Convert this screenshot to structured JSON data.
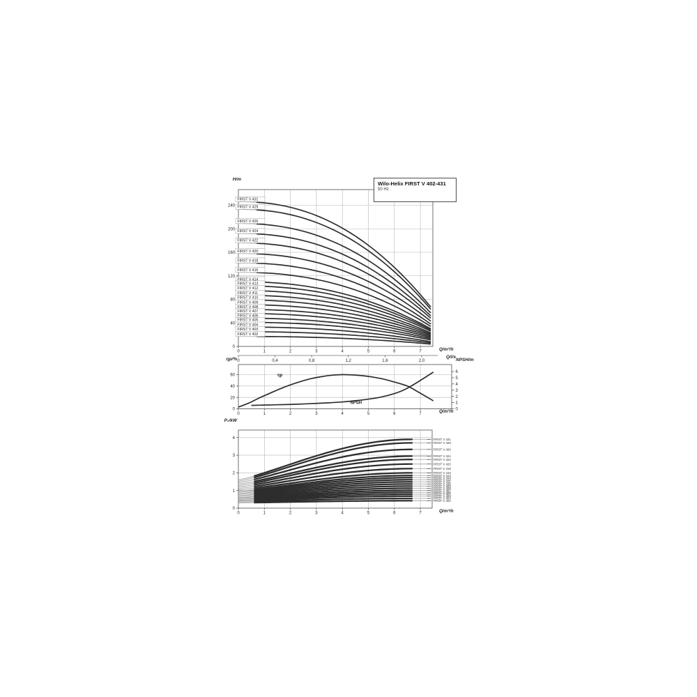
{
  "title_box": {
    "title": "Wilo-Helix FIRST V 402-431",
    "subtitle": "50 Hz"
  },
  "chart_data": [
    {
      "id": "head_curves",
      "type": "line",
      "title": "Wilo-Helix FIRST V 402-431",
      "subtitle": "50 Hz",
      "ylabel": "H/m",
      "xlabel": "Q/m³/h",
      "xlabel2": "Q/l/s",
      "xlim": [
        0,
        7.5
      ],
      "ylim": [
        0,
        267
      ],
      "xticks": [
        0,
        1,
        2,
        3,
        4,
        5,
        6,
        7
      ],
      "yticks": [
        0,
        40,
        80,
        120,
        160,
        200,
        240
      ],
      "x2_ticks": [
        {
          "v": 0.0,
          "label": "0"
        },
        {
          "v": 0.4,
          "label": "0,4"
        },
        {
          "v": 0.8,
          "label": "0,8"
        },
        {
          "v": 1.2,
          "label": "1,2"
        },
        {
          "v": 1.6,
          "label": "1,6"
        },
        {
          "v": 2.0,
          "label": "2,0"
        }
      ],
      "grid": true,
      "q_min_thick": 0.7,
      "q_end": 7.4,
      "curve_exponent": 2.25,
      "series": [
        {
          "name": "FIRST V 431",
          "h0": 246,
          "h_end": 67
        },
        {
          "name": "FIRST V 429",
          "h0": 233,
          "h_end": 63
        },
        {
          "name": "FIRST V 426",
          "h0": 209,
          "h_end": 57
        },
        {
          "name": "FIRST V 424",
          "h0": 192,
          "h_end": 52
        },
        {
          "name": "FIRST V 422",
          "h0": 176,
          "h_end": 48
        },
        {
          "name": "FIRST V 420",
          "h0": 158,
          "h_end": 43
        },
        {
          "name": "FIRST V 418",
          "h0": 142,
          "h_end": 38
        },
        {
          "name": "FIRST V 416",
          "h0": 126,
          "h_end": 34
        },
        {
          "name": "FIRST V 414",
          "h0": 110,
          "h_end": 30
        },
        {
          "name": "FIRST V 413",
          "h0": 103,
          "h_end": 28
        },
        {
          "name": "FIRST V 412",
          "h0": 95,
          "h_end": 26
        },
        {
          "name": "FIRST V 411",
          "h0": 87,
          "h_end": 23
        },
        {
          "name": "FIRST V 410",
          "h0": 79,
          "h_end": 21
        },
        {
          "name": "FIRST V 409",
          "h0": 71,
          "h_end": 19
        },
        {
          "name": "FIRST V 408",
          "h0": 63,
          "h_end": 17
        },
        {
          "name": "FIRST V 407",
          "h0": 56,
          "h_end": 15
        },
        {
          "name": "FIRST V 406",
          "h0": 48,
          "h_end": 13
        },
        {
          "name": "FIRST V 405",
          "h0": 41,
          "h_end": 11
        },
        {
          "name": "FIRST V 404",
          "h0": 33,
          "h_end": 8
        },
        {
          "name": "FIRST V 403",
          "h0": 25,
          "h_end": 6
        },
        {
          "name": "FIRST V 402",
          "h0": 17,
          "h_end": 4
        }
      ]
    },
    {
      "id": "efficiency_npsh",
      "type": "line",
      "ylabel_left": "ηp/%",
      "ylabel_right": "NPSH/m",
      "xlabel": "Q/m³/h",
      "xlim": [
        0,
        8.2
      ],
      "ylim_left": [
        0,
        78
      ],
      "ylim_right": [
        0,
        7.1
      ],
      "xticks": [
        0,
        1,
        2,
        3,
        4,
        5,
        6,
        7
      ],
      "yticks_left": [
        0,
        20,
        40,
        60
      ],
      "yticks_right": [
        0,
        1,
        2,
        3,
        4,
        5,
        6
      ],
      "grid": true,
      "series": [
        {
          "name": "ηp",
          "axis": "left",
          "label_xy": [
            1.5,
            57
          ],
          "points": [
            [
              0,
              3
            ],
            [
              0.4,
              10
            ],
            [
              0.8,
              19
            ],
            [
              1.2,
              27
            ],
            [
              1.6,
              35
            ],
            [
              2,
              42
            ],
            [
              2.4,
              48
            ],
            [
              2.8,
              53
            ],
            [
              3.2,
              56.5
            ],
            [
              3.6,
              59
            ],
            [
              4,
              60
            ],
            [
              4.4,
              59.5
            ],
            [
              4.8,
              58
            ],
            [
              5.2,
              55.5
            ],
            [
              5.6,
              52
            ],
            [
              6,
              47
            ],
            [
              6.5,
              40
            ],
            [
              6.9,
              30
            ],
            [
              7.5,
              14
            ]
          ]
        },
        {
          "name": "NPSH",
          "axis": "right",
          "label_xy": [
            4.3,
            0.78
          ],
          "points": [
            [
              0.5,
              0.55
            ],
            [
              1,
              0.6
            ],
            [
              1.5,
              0.65
            ],
            [
              2,
              0.7
            ],
            [
              2.5,
              0.78
            ],
            [
              3,
              0.87
            ],
            [
              3.5,
              0.97
            ],
            [
              4,
              1.1
            ],
            [
              4.5,
              1.3
            ],
            [
              5,
              1.55
            ],
            [
              5.5,
              1.9
            ],
            [
              6,
              2.45
            ],
            [
              6.4,
              3.1
            ],
            [
              6.9,
              4.3
            ],
            [
              7.5,
              5.9
            ]
          ]
        }
      ]
    },
    {
      "id": "power_curves",
      "type": "line",
      "ylabel": "P₂/kW",
      "xlabel": "Q/m³/h",
      "xlim": [
        0,
        7.45
      ],
      "ylim": [
        0,
        4.43
      ],
      "xticks": [
        0,
        1,
        2,
        3,
        4,
        5,
        6,
        7
      ],
      "yticks": [
        0,
        1,
        2,
        3,
        4
      ],
      "grid": true,
      "q_min_thick": 0.6,
      "q_end": 6.7,
      "q_tail": 7.25,
      "series": [
        {
          "name": "FIRST V 431",
          "p0": 1.6,
          "p_end": 3.9
        },
        {
          "name": "FIRST V 429",
          "p0": 1.52,
          "p_end": 3.7
        },
        {
          "name": "FIRST V 426",
          "p0": 1.44,
          "p_end": 3.33
        },
        {
          "name": "FIRST V 424",
          "p0": 1.36,
          "p_end": 2.95
        },
        {
          "name": "FIRST V 422",
          "p0": 1.28,
          "p_end": 2.76
        },
        {
          "name": "FIRST V 420",
          "p0": 1.2,
          "p_end": 2.5
        },
        {
          "name": "FIRST V 418",
          "p0": 1.12,
          "p_end": 2.24
        },
        {
          "name": "FIRST V 416",
          "p0": 1.04,
          "p_end": 2.0
        },
        {
          "name": "FIRST V 414",
          "p0": 0.96,
          "p_end": 1.85
        },
        {
          "name": "FIRST V 413",
          "p0": 0.9,
          "p_end": 1.73
        },
        {
          "name": "FIRST V 412",
          "p0": 0.84,
          "p_end": 1.61
        },
        {
          "name": "FIRST V 411",
          "p0": 0.78,
          "p_end": 1.49
        },
        {
          "name": "FIRST V 410",
          "p0": 0.72,
          "p_end": 1.37
        },
        {
          "name": "FIRST V 409",
          "p0": 0.66,
          "p_end": 1.25
        },
        {
          "name": "FIRST V 408",
          "p0": 0.6,
          "p_end": 1.13
        },
        {
          "name": "FIRST V 407",
          "p0": 0.55,
          "p_end": 1.01
        },
        {
          "name": "FIRST V 406",
          "p0": 0.5,
          "p_end": 0.9
        },
        {
          "name": "FIRST V 405",
          "p0": 0.45,
          "p_end": 0.79
        },
        {
          "name": "FIRST V 404",
          "p0": 0.4,
          "p_end": 0.68
        },
        {
          "name": "FIRST V 403",
          "p0": 0.35,
          "p_end": 0.55
        },
        {
          "name": "FIRST V 402",
          "p0": 0.3,
          "p_end": 0.42
        }
      ]
    }
  ]
}
